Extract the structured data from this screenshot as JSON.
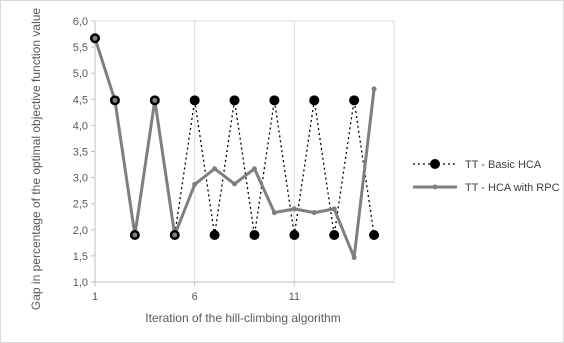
{
  "chart_data": {
    "type": "line",
    "xlabel": "Iteration of the hill-climbing algorithm",
    "ylabel": "Gap in percentage of the optimal objective function value",
    "x": [
      1,
      2,
      3,
      4,
      5,
      6,
      7,
      8,
      9,
      10,
      11,
      12,
      13,
      14,
      15,
      16
    ],
    "xlim": [
      1,
      16
    ],
    "x_ticks": [
      1,
      6,
      11
    ],
    "x_tick_labels": [
      "1",
      "6",
      "11"
    ],
    "ylim": [
      1.0,
      6.0
    ],
    "y_ticks": [
      1.0,
      1.5,
      2.0,
      2.5,
      3.0,
      3.5,
      4.0,
      4.5,
      5.0,
      5.5,
      6.0
    ],
    "y_tick_labels": [
      "1,0",
      "1,5",
      "2,0",
      "2,5",
      "3,0",
      "3,5",
      "4,0",
      "4,5",
      "5,0",
      "5,5",
      "6,0"
    ],
    "grid": "vertical",
    "legend_position": "right",
    "series": [
      {
        "name": "TT - Basic HCA",
        "style": "dotted-black-with-circle-markers",
        "color": "#000000",
        "values": [
          5.67,
          4.48,
          1.9,
          4.48,
          1.9,
          4.48,
          1.9,
          4.48,
          1.9,
          4.48,
          1.9,
          4.48,
          1.9,
          4.48,
          1.9,
          null
        ]
      },
      {
        "name": "TT - HCA with RPC",
        "style": "solid-gray-with-small-markers",
        "color": "#7f7f7f",
        "values": [
          5.67,
          4.48,
          1.9,
          4.48,
          1.9,
          2.87,
          3.17,
          2.88,
          3.17,
          2.33,
          2.4,
          2.33,
          2.4,
          1.47,
          4.7,
          null
        ]
      }
    ]
  }
}
